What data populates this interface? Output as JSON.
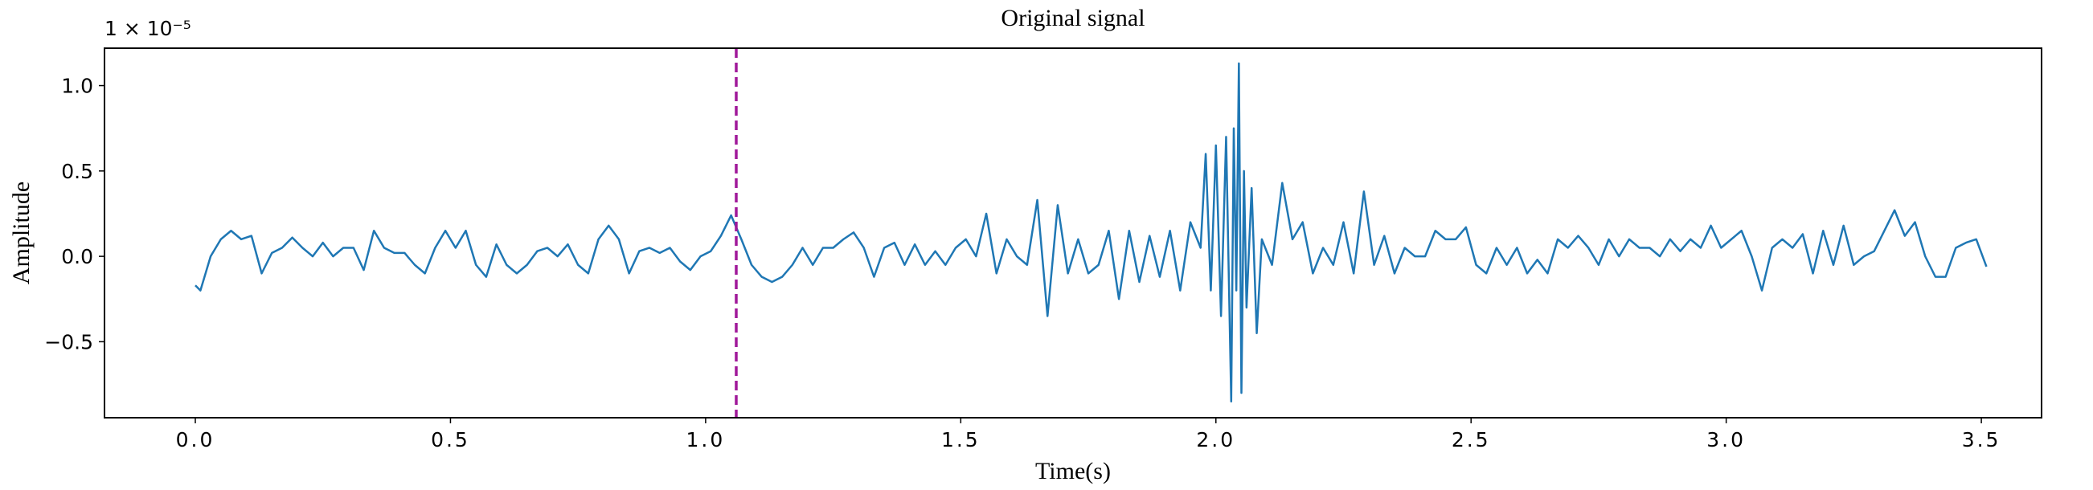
{
  "chart_data": {
    "type": "line",
    "title": "Original signal",
    "xlabel": "Time(s)",
    "ylabel": "Amplitude",
    "y_offset_text": "1 × 10⁻⁵",
    "color": "#1f77b4",
    "x": [
      0,
      0.01,
      0.03,
      0.05,
      0.07,
      0.09,
      0.11,
      0.13,
      0.15,
      0.17,
      0.19,
      0.21,
      0.23,
      0.25,
      0.27,
      0.29,
      0.31,
      0.33,
      0.35,
      0.37,
      0.39,
      0.41,
      0.43,
      0.45,
      0.47,
      0.49,
      0.51,
      0.53,
      0.55,
      0.57,
      0.59,
      0.61,
      0.63,
      0.65,
      0.67,
      0.69,
      0.71,
      0.73,
      0.75,
      0.77,
      0.79,
      0.81,
      0.83,
      0.85,
      0.87,
      0.89,
      0.91,
      0.93,
      0.95,
      0.97,
      0.99,
      1.01,
      1.03,
      1.05,
      1.07,
      1.09,
      1.11,
      1.13,
      1.15,
      1.17,
      1.19,
      1.21,
      1.23,
      1.25,
      1.27,
      1.29,
      1.31,
      1.33,
      1.35,
      1.37,
      1.39,
      1.41,
      1.43,
      1.45,
      1.47,
      1.49,
      1.51,
      1.53,
      1.55,
      1.57,
      1.59,
      1.61,
      1.63,
      1.65,
      1.67,
      1.69,
      1.71,
      1.73,
      1.75,
      1.77,
      1.79,
      1.81,
      1.83,
      1.85,
      1.87,
      1.89,
      1.91,
      1.93,
      1.95,
      1.97,
      1.98,
      1.99,
      2.0,
      2.01,
      2.02,
      2.03,
      2.035,
      2.04,
      2.045,
      2.05,
      2.055,
      2.06,
      2.07,
      2.08,
      2.09,
      2.11,
      2.13,
      2.15,
      2.17,
      2.19,
      2.21,
      2.23,
      2.25,
      2.27,
      2.29,
      2.31,
      2.33,
      2.35,
      2.37,
      2.39,
      2.41,
      2.43,
      2.45,
      2.47,
      2.49,
      2.51,
      2.53,
      2.55,
      2.57,
      2.59,
      2.61,
      2.63,
      2.65,
      2.67,
      2.69,
      2.71,
      2.73,
      2.75,
      2.77,
      2.79,
      2.81,
      2.83,
      2.85,
      2.87,
      2.89,
      2.91,
      2.93,
      2.95,
      2.97,
      2.99,
      3.01,
      3.03,
      3.05,
      3.07,
      3.09,
      3.11,
      3.13,
      3.15,
      3.17,
      3.19,
      3.21,
      3.23,
      3.25,
      3.27,
      3.29,
      3.31,
      3.33,
      3.35,
      3.37,
      3.39,
      3.41,
      3.43,
      3.45,
      3.47,
      3.49,
      3.51
    ],
    "values": [
      -0.17,
      -0.2,
      0.0,
      0.1,
      0.15,
      0.1,
      0.12,
      -0.1,
      0.02,
      0.05,
      0.11,
      0.05,
      0.0,
      0.08,
      0.0,
      0.05,
      0.05,
      -0.08,
      0.15,
      0.05,
      0.02,
      0.02,
      -0.05,
      -0.1,
      0.05,
      0.15,
      0.05,
      0.15,
      -0.05,
      -0.12,
      0.07,
      -0.05,
      -0.1,
      -0.05,
      0.03,
      0.05,
      0.0,
      0.07,
      -0.05,
      -0.1,
      0.1,
      0.18,
      0.1,
      -0.1,
      0.03,
      0.05,
      0.02,
      0.05,
      -0.03,
      -0.08,
      0.0,
      0.03,
      0.12,
      0.24,
      0.1,
      -0.05,
      -0.12,
      -0.15,
      -0.12,
      -0.05,
      0.05,
      -0.05,
      0.05,
      0.05,
      0.1,
      0.14,
      0.05,
      -0.12,
      0.05,
      0.08,
      -0.05,
      0.07,
      -0.05,
      0.03,
      -0.05,
      0.05,
      0.1,
      0.0,
      0.25,
      -0.1,
      0.1,
      0.0,
      -0.05,
      0.33,
      -0.35,
      0.3,
      -0.1,
      0.1,
      -0.1,
      -0.05,
      0.15,
      -0.25,
      0.15,
      -0.15,
      0.12,
      -0.12,
      0.15,
      -0.2,
      0.2,
      0.05,
      0.6,
      -0.2,
      0.65,
      -0.35,
      0.7,
      -0.85,
      0.75,
      -0.2,
      1.13,
      -0.8,
      0.5,
      -0.3,
      0.4,
      -0.45,
      0.1,
      -0.05,
      0.43,
      0.1,
      0.2,
      -0.1,
      0.05,
      -0.05,
      0.2,
      -0.1,
      0.38,
      -0.05,
      0.12,
      -0.1,
      0.05,
      0.0,
      0.0,
      0.15,
      0.1,
      0.1,
      0.17,
      -0.05,
      -0.1,
      0.05,
      -0.05,
      0.05,
      -0.1,
      -0.02,
      -0.1,
      0.1,
      0.05,
      0.12,
      0.05,
      -0.05,
      0.1,
      0.0,
      0.1,
      0.05,
      0.05,
      0.0,
      0.1,
      0.03,
      0.1,
      0.05,
      0.18,
      0.05,
      0.1,
      0.15,
      0.0,
      -0.2,
      0.05,
      0.1,
      0.05,
      0.13,
      -0.1,
      0.15,
      -0.05,
      0.18,
      -0.05,
      0.0,
      0.03,
      0.15,
      0.27,
      0.12,
      0.2,
      0.0,
      -0.12,
      -0.12,
      0.05,
      0.08,
      0.1,
      -0.06
    ],
    "vline": {
      "x": 1.06,
      "color": "#a0199a"
    },
    "xlim": [
      -0.178,
      3.618
    ],
    "ylim": [
      -0.945,
      1.219
    ],
    "xticks": [
      {
        "value": 0,
        "label": "0.0"
      },
      0.5,
      {
        "value": 1,
        "label": "1.0"
      },
      1.5,
      {
        "value": 2,
        "label": "2.0"
      },
      2.5,
      {
        "value": 3,
        "label": "3.0"
      },
      3.5
    ],
    "yticks": [
      {
        "value": -0.5,
        "label": "−0.5"
      },
      {
        "value": 0,
        "label": "0.0"
      },
      0.5,
      {
        "value": 1,
        "label": "1.0"
      }
    ]
  }
}
